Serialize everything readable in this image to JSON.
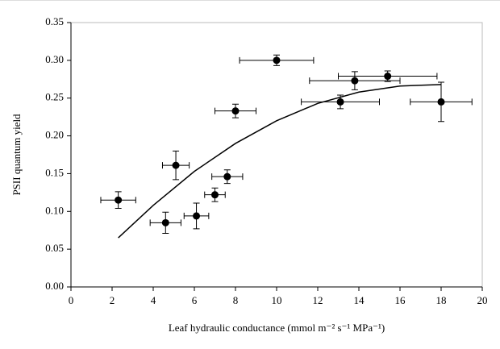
{
  "chart_data": {
    "type": "scatter",
    "xlabel": "Leaf hydraulic conductance (mmol m⁻² s⁻¹ MPa⁻¹)",
    "ylabel": "PSII quantum yield",
    "x": [
      2.3,
      4.6,
      5.1,
      6.1,
      7.0,
      7.6,
      8.0,
      10.0,
      13.1,
      13.8,
      15.4,
      18.0
    ],
    "values": [
      0.115,
      0.085,
      0.161,
      0.094,
      0.122,
      0.146,
      0.233,
      0.3,
      0.245,
      0.273,
      0.279,
      0.245
    ],
    "xerr": [
      0.85,
      0.75,
      0.65,
      0.6,
      0.5,
      0.75,
      1.0,
      1.8,
      1.9,
      2.2,
      2.4,
      1.5
    ],
    "yerr": [
      0.011,
      0.014,
      0.019,
      0.017,
      0.009,
      0.009,
      0.009,
      0.007,
      0.009,
      0.012,
      0.007,
      0.026
    ],
    "color": "#000000",
    "curve": {
      "x": [
        2.3,
        4,
        6,
        8,
        10,
        12,
        14,
        16,
        18
      ],
      "values": [
        0.065,
        0.108,
        0.153,
        0.19,
        0.22,
        0.243,
        0.258,
        0.266,
        0.268
      ]
    },
    "xlim": [
      0,
      20
    ],
    "ylim": [
      0,
      0.35
    ],
    "xticks": [
      0,
      2,
      4,
      6,
      8,
      10,
      12,
      14,
      16,
      18,
      20
    ],
    "yticks": [
      {
        "value": 0,
        "label": "0.00"
      },
      {
        "value": 0.05,
        "label": "0.05"
      },
      {
        "value": 0.1,
        "label": "0.10"
      },
      {
        "value": 0.15,
        "label": "0.15"
      },
      {
        "value": 0.2,
        "label": "0.20"
      },
      {
        "value": 0.25,
        "label": "0.25"
      },
      {
        "value": 0.3,
        "label": "0.30"
      },
      {
        "value": 0.35,
        "label": "0.35"
      }
    ]
  }
}
